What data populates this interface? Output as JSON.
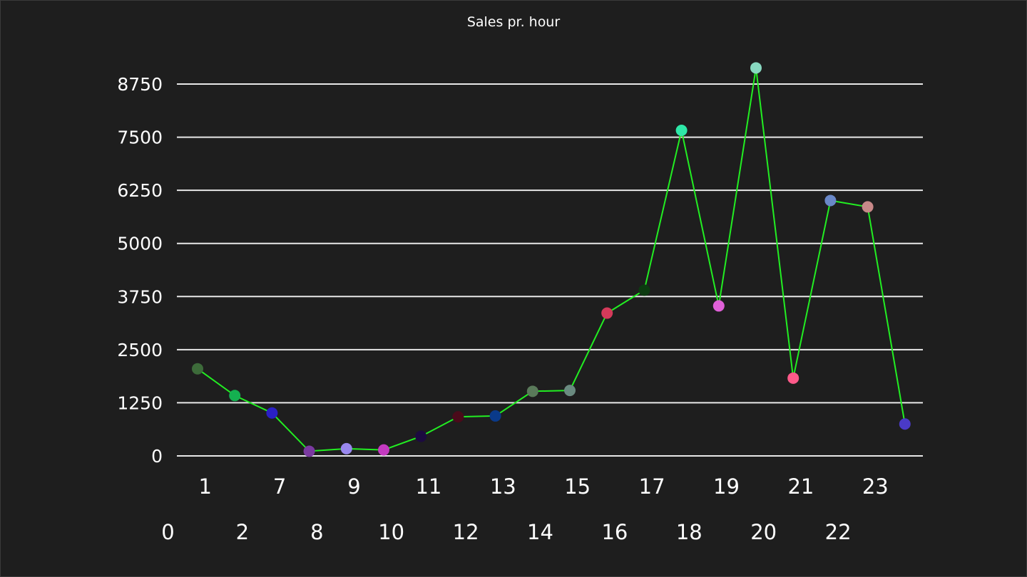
{
  "chart_data": {
    "type": "line",
    "title": "Sales pr. hour",
    "xlabel": "",
    "ylabel": "",
    "x": [
      "0",
      "1",
      "2",
      "7",
      "8",
      "9",
      "10",
      "11",
      "12",
      "13",
      "14",
      "15",
      "16",
      "17",
      "18",
      "19",
      "20",
      "21",
      "22",
      "23"
    ],
    "values": [
      2050,
      1420,
      1010,
      110,
      170,
      140,
      460,
      920,
      940,
      1520,
      1540,
      3360,
      3900,
      7660,
      3530,
      9130,
      1830,
      6010,
      5860,
      750
    ],
    "ylim": [
      0,
      8750
    ],
    "yticks": [
      0,
      1250,
      2500,
      3750,
      5000,
      6250,
      7500,
      8750
    ],
    "grid": true,
    "legend": "none",
    "line_color": "#22ee22",
    "point_colors": [
      "#3d6b3a",
      "#14b050",
      "#2a1fc4",
      "#7a3aa0",
      "#9988ee",
      "#c43ac0",
      "#1c0a40",
      "#4a0a1a",
      "#0a3a8a",
      "#5a7a5a",
      "#6a8a80",
      "#d43a5a",
      "#0c3a10",
      "#2ee8a8",
      "#e060d8",
      "#88d8c0",
      "#ff5a8a",
      "#6a88c8",
      "#c88888",
      "#4a3ac8"
    ]
  }
}
